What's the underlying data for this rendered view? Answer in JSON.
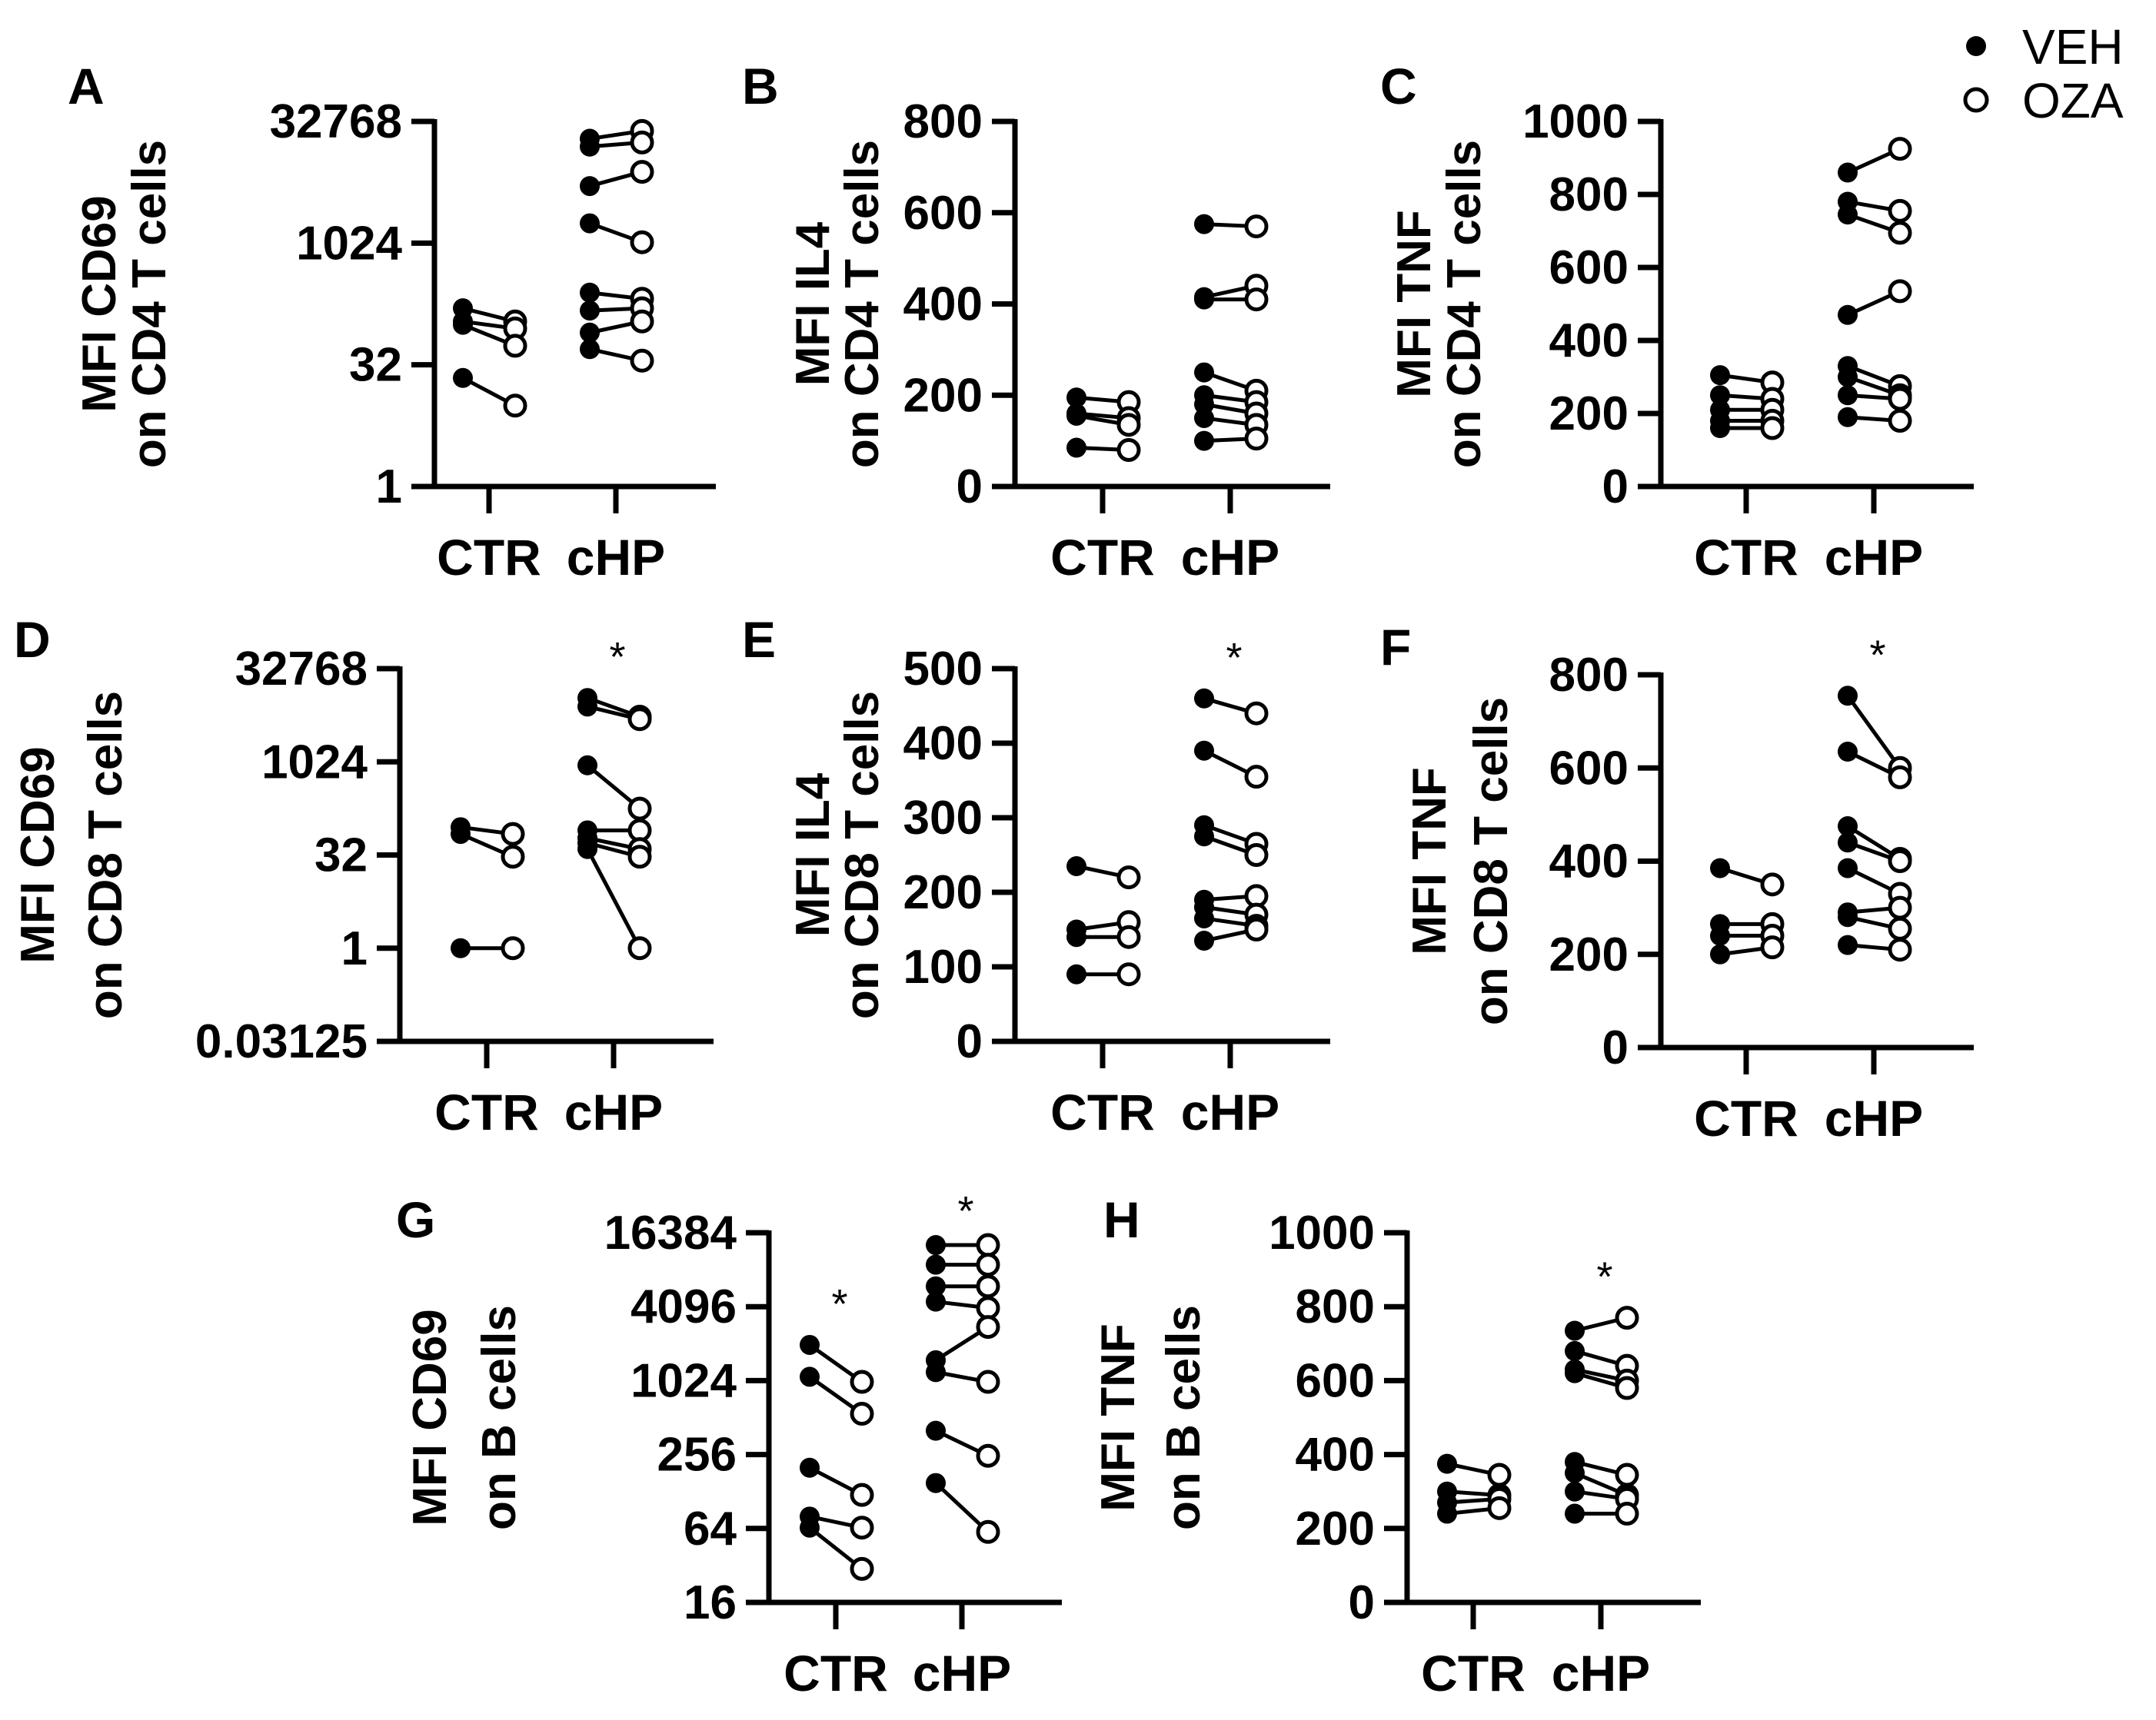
{
  "figure": {
    "legend": [
      {
        "label": "VEH",
        "marker": "filled-circle"
      },
      {
        "label": "OZA",
        "marker": "open-circle"
      }
    ],
    "colors": {
      "ink": "#000000",
      "background": "#ffffff"
    }
  },
  "chart_data": [
    {
      "panel": "A",
      "type": "scatter",
      "paired": true,
      "ylabel": [
        "MFI CD69",
        "on CD4 T cells"
      ],
      "categories": [
        "CTR",
        "cHP"
      ],
      "yscale": "log2",
      "ylim": [
        1,
        32768
      ],
      "yticks": [
        1,
        32,
        1024,
        32768
      ],
      "ytick_labels": [
        "1",
        "32",
        "1024",
        "32768"
      ],
      "significance": [],
      "groups": [
        {
          "category": "CTR",
          "pairs": [
            [
              160,
              110
            ],
            [
              110,
              90
            ],
            [
              100,
              55
            ],
            [
              22,
              10
            ]
          ]
        },
        {
          "category": "cHP",
          "pairs": [
            [
              20000,
              25000
            ],
            [
              16000,
              18000
            ],
            [
              5200,
              7800
            ],
            [
              1800,
              1050
            ],
            [
              250,
              210
            ],
            [
              150,
              160
            ],
            [
              80,
              110
            ],
            [
              50,
              36
            ]
          ]
        }
      ]
    },
    {
      "panel": "B",
      "type": "scatter",
      "paired": true,
      "ylabel": [
        "MFI IL4",
        "on CD4 T cells"
      ],
      "categories": [
        "CTR",
        "cHP"
      ],
      "yscale": "linear",
      "ylim": [
        0,
        800
      ],
      "yticks": [
        0,
        200,
        400,
        600,
        800
      ],
      "ytick_labels": [
        "0",
        "200",
        "400",
        "600",
        "800"
      ],
      "significance": [],
      "groups": [
        {
          "category": "CTR",
          "pairs": [
            [
              195,
              185
            ],
            [
              160,
              150
            ],
            [
              155,
              135
            ],
            [
              85,
              80
            ]
          ]
        },
        {
          "category": "cHP",
          "pairs": [
            [
              575,
              570
            ],
            [
              415,
              440
            ],
            [
              410,
              410
            ],
            [
              250,
              210
            ],
            [
              200,
              185
            ],
            [
              180,
              160
            ],
            [
              150,
              135
            ],
            [
              100,
              105
            ]
          ]
        }
      ]
    },
    {
      "panel": "C",
      "type": "scatter",
      "paired": true,
      "ylabel": [
        "MFI TNF",
        "on CD4 T cells"
      ],
      "categories": [
        "CTR",
        "cHP"
      ],
      "yscale": "linear",
      "ylim": [
        0,
        1000
      ],
      "yticks": [
        0,
        200,
        400,
        600,
        800,
        1000
      ],
      "ytick_labels": [
        "0",
        "200",
        "400",
        "600",
        "800",
        "1000"
      ],
      "significance": [],
      "groups": [
        {
          "category": "CTR",
          "pairs": [
            [
              305,
              285
            ],
            [
              250,
              240
            ],
            [
              210,
              210
            ],
            [
              180,
              180
            ],
            [
              160,
              160
            ]
          ]
        },
        {
          "category": "cHP",
          "pairs": [
            [
              860,
              925
            ],
            [
              780,
              755
            ],
            [
              745,
              695
            ],
            [
              470,
              535
            ],
            [
              330,
              275
            ],
            [
              300,
              250
            ],
            [
              250,
              240
            ],
            [
              190,
              180
            ]
          ]
        }
      ]
    },
    {
      "panel": "D",
      "type": "scatter",
      "paired": true,
      "ylabel": [
        "MFI CD69",
        "on CD8 T cells"
      ],
      "categories": [
        "CTR",
        "cHP"
      ],
      "yscale": "log2",
      "ylim": [
        0.03125,
        32768
      ],
      "yticks": [
        0.03125,
        1,
        32,
        1024,
        32768
      ],
      "ytick_labels": [
        "0.03125",
        "1",
        "32",
        "1024",
        "32768"
      ],
      "significance": [
        "cHP"
      ],
      "groups": [
        {
          "category": "CTR",
          "pairs": [
            [
              90,
              70
            ],
            [
              70,
              30
            ],
            [
              1,
              1
            ]
          ]
        },
        {
          "category": "cHP",
          "pairs": [
            [
              11000,
              5500
            ],
            [
              8000,
              5000
            ],
            [
              900,
              180
            ],
            [
              80,
              80
            ],
            [
              60,
              40
            ],
            [
              50,
              30
            ],
            [
              40,
              1
            ]
          ]
        }
      ]
    },
    {
      "panel": "E",
      "type": "scatter",
      "paired": true,
      "ylabel": [
        "MFI IL4",
        "on CD8 T cells"
      ],
      "categories": [
        "CTR",
        "cHP"
      ],
      "yscale": "linear",
      "ylim": [
        0,
        500
      ],
      "yticks": [
        0,
        100,
        200,
        300,
        400,
        500
      ],
      "ytick_labels": [
        "0",
        "100",
        "200",
        "300",
        "400",
        "500"
      ],
      "significance": [
        "cHP"
      ],
      "groups": [
        {
          "category": "CTR",
          "pairs": [
            [
              235,
              220
            ],
            [
              150,
              160
            ],
            [
              140,
              140
            ],
            [
              90,
              90
            ]
          ]
        },
        {
          "category": "cHP",
          "pairs": [
            [
              460,
              440
            ],
            [
              390,
              355
            ],
            [
              290,
              265
            ],
            [
              275,
              250
            ],
            [
              190,
              195
            ],
            [
              180,
              170
            ],
            [
              165,
              155
            ],
            [
              135,
              150
            ]
          ]
        }
      ]
    },
    {
      "panel": "F",
      "type": "scatter",
      "paired": true,
      "ylabel": [
        "MFI TNF",
        "on CD8 T cells"
      ],
      "categories": [
        "CTR",
        "cHP"
      ],
      "yscale": "linear",
      "ylim": [
        0,
        800
      ],
      "yticks": [
        0,
        200,
        400,
        600,
        800
      ],
      "ytick_labels": [
        "0",
        "200",
        "400",
        "600",
        "800"
      ],
      "significance": [
        "cHP"
      ],
      "groups": [
        {
          "category": "CTR",
          "pairs": [
            [
              385,
              350
            ],
            [
              265,
              265
            ],
            [
              240,
              240
            ],
            [
              200,
              215
            ]
          ]
        },
        {
          "category": "cHP",
          "pairs": [
            [
              755,
              600
            ],
            [
              635,
              580
            ],
            [
              475,
              405
            ],
            [
              440,
              400
            ],
            [
              385,
              330
            ],
            [
              290,
              300
            ],
            [
              280,
              255
            ],
            [
              220,
              210
            ]
          ]
        }
      ]
    },
    {
      "panel": "G",
      "type": "scatter",
      "paired": true,
      "ylabel": [
        "MFI CD69",
        "on B cells"
      ],
      "categories": [
        "CTR",
        "cHP"
      ],
      "yscale": "log2",
      "ylim": [
        16,
        16384
      ],
      "yticks": [
        16,
        64,
        256,
        1024,
        4096,
        16384
      ],
      "ytick_labels": [
        "16",
        "64",
        "256",
        "1024",
        "4096",
        "16384"
      ],
      "significance": [
        "CTR",
        "cHP"
      ],
      "groups": [
        {
          "category": "CTR",
          "pairs": [
            [
              2000,
              1000
            ],
            [
              1100,
              550
            ],
            [
              200,
              120
            ],
            [
              80,
              65
            ],
            [
              65,
              30
            ]
          ]
        },
        {
          "category": "cHP",
          "pairs": [
            [
              13000,
              13000
            ],
            [
              9000,
              9000
            ],
            [
              6000,
              6000
            ],
            [
              4500,
              4000
            ],
            [
              1500,
              2800
            ],
            [
              1200,
              1000
            ],
            [
              400,
              250
            ],
            [
              150,
              60
            ]
          ]
        }
      ]
    },
    {
      "panel": "H",
      "type": "scatter",
      "paired": true,
      "ylabel": [
        "MFI TNF",
        "on B cells"
      ],
      "categories": [
        "CTR",
        "cHP"
      ],
      "yscale": "linear",
      "ylim": [
        0,
        1000
      ],
      "yticks": [
        0,
        200,
        400,
        600,
        800,
        1000
      ],
      "ytick_labels": [
        "0",
        "200",
        "400",
        "600",
        "800",
        "1000"
      ],
      "significance": [
        "cHP"
      ],
      "groups": [
        {
          "category": "CTR",
          "pairs": [
            [
              375,
              345
            ],
            [
              300,
              290
            ],
            [
              270,
              280
            ],
            [
              240,
              255
            ]
          ]
        },
        {
          "category": "cHP",
          "pairs": [
            [
              735,
              770
            ],
            [
              680,
              640
            ],
            [
              630,
              600
            ],
            [
              620,
              580
            ],
            [
              380,
              345
            ],
            [
              350,
              290
            ],
            [
              300,
              280
            ],
            [
              240,
              240
            ]
          ]
        }
      ]
    }
  ]
}
